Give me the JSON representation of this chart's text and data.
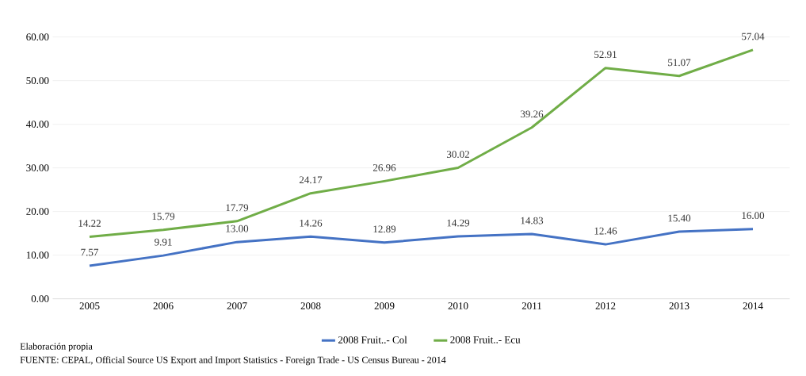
{
  "chart_data": {
    "type": "line",
    "categories": [
      "2005",
      "2006",
      "2007",
      "2008",
      "2009",
      "2010",
      "2011",
      "2012",
      "2013",
      "2014"
    ],
    "series": [
      {
        "name": "2008 Fruit..- Col",
        "color": "#4472c4",
        "values": [
          7.57,
          9.91,
          13.0,
          14.26,
          12.89,
          14.29,
          14.83,
          12.46,
          15.4,
          16.0
        ],
        "value_labels": [
          "7.57",
          "9.91",
          "13.00",
          "14.26",
          "12.89",
          "14.29",
          "14.83",
          "12.46",
          "15.40",
          "16.00"
        ]
      },
      {
        "name": "2008 Fruit..- Ecu",
        "color": "#70ad47",
        "values": [
          14.22,
          15.79,
          17.79,
          24.17,
          26.96,
          30.02,
          39.26,
          52.91,
          51.07,
          57.04
        ],
        "value_labels": [
          "14.22",
          "15.79",
          "17.79",
          "24.17",
          "26.96",
          "30.02",
          "39.26",
          "52.91",
          "51.07",
          "57.04"
        ]
      }
    ],
    "ylim": [
      0,
      60
    ],
    "yticks": [
      {
        "value": 0,
        "label": "0.00"
      },
      {
        "value": 10,
        "label": "10.00"
      },
      {
        "value": 20,
        "label": "20.00"
      },
      {
        "value": 30,
        "label": "30.00"
      },
      {
        "value": 40,
        "label": "40.00"
      },
      {
        "value": 50,
        "label": "50.00"
      },
      {
        "value": 60,
        "label": "60.00"
      }
    ],
    "grid": "y",
    "legend": "bottom",
    "marker": "none",
    "line_style": "solid",
    "annotations": [
      "Elaboración propia",
      "FUENTE: CEPAL, Official Source US Export and Import Statistics - Foreign Trade - US Census Bureau - 2014"
    ]
  }
}
